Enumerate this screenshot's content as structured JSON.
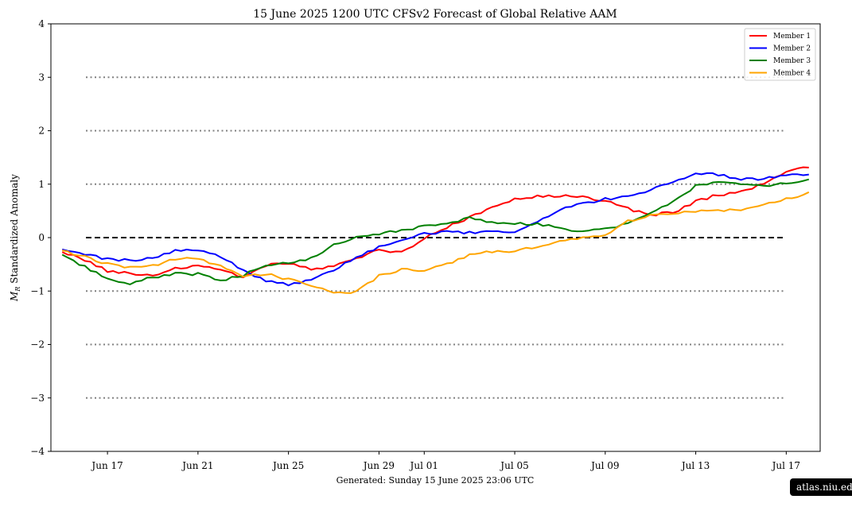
{
  "chart_data": {
    "type": "line",
    "title": "15  June  2025 1200 UTC   CFSv2 Forecast of Global Relative AAM",
    "ylabel": "Standardized Anomaly",
    "ylabel_symbol": "M",
    "ylabel_subscript": "R",
    "xlabel": "",
    "ylim": [
      -4,
      4
    ],
    "xlim": [
      "2025-06-14T12:00",
      "2025-07-18T12:00"
    ],
    "yticks": [
      "−4",
      "−3",
      "−2",
      "−1",
      "0",
      "1",
      "2",
      "3",
      "4"
    ],
    "xticks": [
      "Jun 17",
      "Jun 21",
      "Jun 25",
      "Jun 29",
      "Jul 01",
      "Jul 05",
      "Jul 09",
      "Jul 13",
      "Jul 17"
    ],
    "xtick_dates": [
      "2025-06-17",
      "2025-06-21",
      "2025-06-25",
      "2025-06-29",
      "2025-07-01",
      "2025-07-05",
      "2025-07-09",
      "2025-07-13",
      "2025-07-17"
    ],
    "dotted_reference_lines": [
      -3,
      -2,
      -1,
      1,
      2,
      3
    ],
    "dashed_reference_line": 0,
    "legend_position": "top-right",
    "x": [
      "2025-06-15",
      "2025-06-16",
      "2025-06-17",
      "2025-06-18",
      "2025-06-19",
      "2025-06-20",
      "2025-06-21",
      "2025-06-22",
      "2025-06-23",
      "2025-06-24",
      "2025-06-25",
      "2025-06-26",
      "2025-06-27",
      "2025-06-28",
      "2025-06-29",
      "2025-06-30",
      "2025-07-01",
      "2025-07-02",
      "2025-07-03",
      "2025-07-04",
      "2025-07-05",
      "2025-07-06",
      "2025-07-07",
      "2025-07-08",
      "2025-07-09",
      "2025-07-10",
      "2025-07-11",
      "2025-07-12",
      "2025-07-13",
      "2025-07-14",
      "2025-07-15",
      "2025-07-16",
      "2025-07-17",
      "2025-07-18"
    ],
    "series": [
      {
        "name": "Member 1",
        "color": "#ff0000",
        "values": [
          -0.27,
          -0.42,
          -0.62,
          -0.68,
          -0.72,
          -0.58,
          -0.52,
          -0.6,
          -0.73,
          -0.52,
          -0.48,
          -0.6,
          -0.55,
          -0.38,
          -0.24,
          -0.28,
          -0.02,
          0.2,
          0.38,
          0.56,
          0.72,
          0.78,
          0.77,
          0.78,
          0.68,
          0.54,
          0.42,
          0.47,
          0.68,
          0.8,
          0.85,
          1.02,
          1.24,
          1.31
        ]
      },
      {
        "name": "Member 2",
        "color": "#0000ff",
        "values": [
          -0.22,
          -0.32,
          -0.4,
          -0.42,
          -0.38,
          -0.24,
          -0.22,
          -0.35,
          -0.62,
          -0.82,
          -0.87,
          -0.8,
          -0.6,
          -0.36,
          -0.18,
          -0.05,
          0.08,
          0.1,
          0.1,
          0.1,
          0.1,
          0.3,
          0.52,
          0.63,
          0.72,
          0.76,
          0.88,
          1.06,
          1.2,
          1.18,
          1.1,
          1.1,
          1.16,
          1.18
        ]
      },
      {
        "name": "Member 3",
        "color": "#008000",
        "values": [
          -0.32,
          -0.55,
          -0.78,
          -0.85,
          -0.74,
          -0.68,
          -0.68,
          -0.8,
          -0.7,
          -0.5,
          -0.48,
          -0.38,
          -0.15,
          0.0,
          0.08,
          0.12,
          0.22,
          0.28,
          0.36,
          0.3,
          0.26,
          0.26,
          0.18,
          0.12,
          0.15,
          0.28,
          0.48,
          0.68,
          0.96,
          1.03,
          1.02,
          0.98,
          1.0,
          1.09
        ]
      },
      {
        "name": "Member 4",
        "color": "#ffa500",
        "values": [
          -0.24,
          -0.36,
          -0.5,
          -0.56,
          -0.52,
          -0.4,
          -0.4,
          -0.52,
          -0.72,
          -0.68,
          -0.78,
          -0.9,
          -1.02,
          -1.02,
          -0.72,
          -0.6,
          -0.62,
          -0.5,
          -0.32,
          -0.26,
          -0.25,
          -0.18,
          -0.08,
          0.0,
          0.05,
          0.3,
          0.43,
          0.45,
          0.5,
          0.5,
          0.52,
          0.6,
          0.72,
          0.85
        ]
      }
    ]
  },
  "footer": {
    "generated": "Generated: Sunday  15  June  2025  23:06 UTC",
    "credit": "atlas.niu.edu"
  }
}
